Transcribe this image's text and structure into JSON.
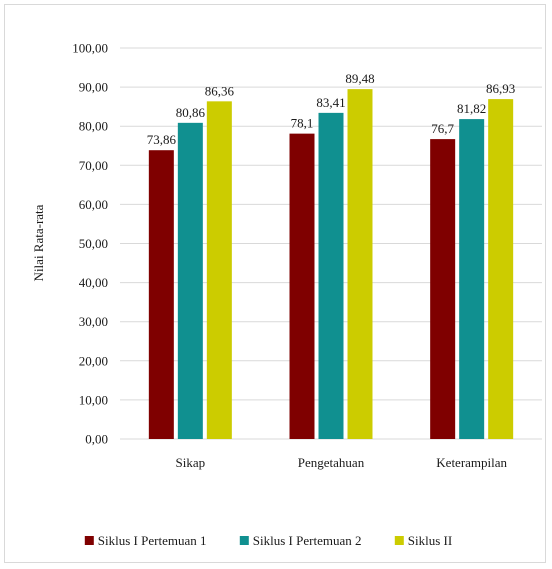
{
  "chart_data": {
    "type": "bar",
    "title": "",
    "xlabel": "",
    "ylabel": "Nilai Rata-rata",
    "ylim": [
      0,
      100
    ],
    "ytick_step": 10,
    "ytick_labels": [
      "0,00",
      "10,00",
      "20,00",
      "30,00",
      "40,00",
      "50,00",
      "60,00",
      "70,00",
      "80,00",
      "90,00",
      "100,00"
    ],
    "grid": true,
    "legend_position": "bottom",
    "categories": [
      "Sikap",
      "Pengetahuan",
      "Keterampilan"
    ],
    "series": [
      {
        "name": "Siklus I Pertemuan 1",
        "color": "#7f0000",
        "values": [
          73.86,
          78.1,
          76.7
        ],
        "labels": [
          "73,86",
          "78,1",
          "76,7"
        ]
      },
      {
        "name": "Siklus I Pertemuan 2",
        "color": "#109090",
        "values": [
          80.86,
          83.41,
          81.82
        ],
        "labels": [
          "80,86",
          "83,41",
          "81,82"
        ]
      },
      {
        "name": "Siklus II",
        "color": "#cccc00",
        "values": [
          86.36,
          89.48,
          86.93
        ],
        "labels": [
          "86,36",
          "89,48",
          "86,93"
        ]
      }
    ]
  }
}
